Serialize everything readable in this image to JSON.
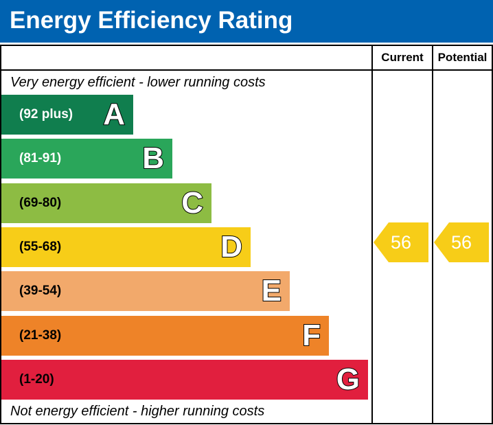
{
  "title": "Energy Efficiency Rating",
  "columns": {
    "current": "Current",
    "potential": "Potential"
  },
  "notes": {
    "top": "Very energy efficient - lower running costs",
    "bottom": "Not energy efficient - higher running costs"
  },
  "chart_data": {
    "type": "bar",
    "title": "Energy Efficiency Rating",
    "categories": [
      "A",
      "B",
      "C",
      "D",
      "E",
      "F",
      "G"
    ],
    "bands": [
      {
        "letter": "A",
        "range": "(92 plus)",
        "min": 92,
        "max": 100,
        "color": "#107e4e",
        "text_color": "#ffffff"
      },
      {
        "letter": "B",
        "range": "(81-91)",
        "min": 81,
        "max": 91,
        "color": "#2aa65a",
        "text_color": "#ffffff"
      },
      {
        "letter": "C",
        "range": "(69-80)",
        "min": 69,
        "max": 80,
        "color": "#8dbc43",
        "text_color": "#000000"
      },
      {
        "letter": "D",
        "range": "(55-68)",
        "min": 55,
        "max": 68,
        "color": "#f7cd18",
        "text_color": "#000000"
      },
      {
        "letter": "E",
        "range": "(39-54)",
        "min": 39,
        "max": 54,
        "color": "#f2a96b",
        "text_color": "#000000"
      },
      {
        "letter": "F",
        "range": "(21-38)",
        "min": 21,
        "max": 38,
        "color": "#ee8328",
        "text_color": "#000000"
      },
      {
        "letter": "G",
        "range": "(1-20)",
        "min": 1,
        "max": 20,
        "color": "#e11f3e",
        "text_color": "#000000"
      }
    ],
    "current": {
      "value": 56,
      "band": "D"
    },
    "potential": {
      "value": 56,
      "band": "D"
    },
    "arrow_color": "#f7cd18"
  }
}
